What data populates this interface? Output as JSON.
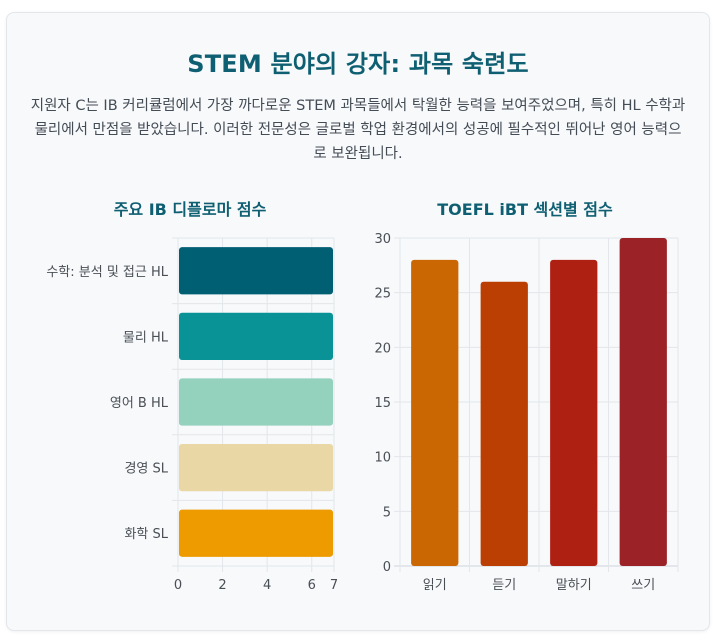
{
  "title": "STEM 분야의 강자: 과목 숙련도",
  "description": "지원자 C는 IB 커리큘럼에서 가장 까다로운 STEM 과목들에서 탁월한 능력을 보여주었으며, 특히 HL 수학과 물리에서 만점을 받았습니다. 이러한 전문성은 글로벌 학업 환경에서의 성공에 필수적인 뛰어난 영어 능력으로 보완됩니다.",
  "chart_data": [
    {
      "type": "bar",
      "orientation": "horizontal",
      "title": "주요 IB 디플로마 점수",
      "categories": [
        "수학: 분석 및 접근 HL",
        "물리 HL",
        "영어 B HL",
        "경영 SL",
        "화학 SL"
      ],
      "values": [
        7,
        7,
        7,
        7,
        7
      ],
      "colors": [
        "#005f73",
        "#0a9396",
        "#94d2bd",
        "#e9d8a6",
        "#ee9b00"
      ],
      "xlim": [
        0,
        7
      ],
      "xticks": [
        0,
        2,
        4,
        6,
        7
      ],
      "xlabel": "",
      "ylabel": "",
      "grid": true
    },
    {
      "type": "bar",
      "orientation": "vertical",
      "title": "TOEFL iBT 섹션별 점수",
      "categories": [
        "읽기",
        "듣기",
        "말하기",
        "쓰기"
      ],
      "values": [
        28,
        26,
        28,
        30
      ],
      "colors": [
        "#ca6702",
        "#bb3e03",
        "#ae2012",
        "#9b2226"
      ],
      "ylim": [
        0,
        30
      ],
      "yticks": [
        0,
        5,
        10,
        15,
        20,
        25,
        30
      ],
      "xlabel": "",
      "ylabel": "",
      "grid": true
    }
  ]
}
